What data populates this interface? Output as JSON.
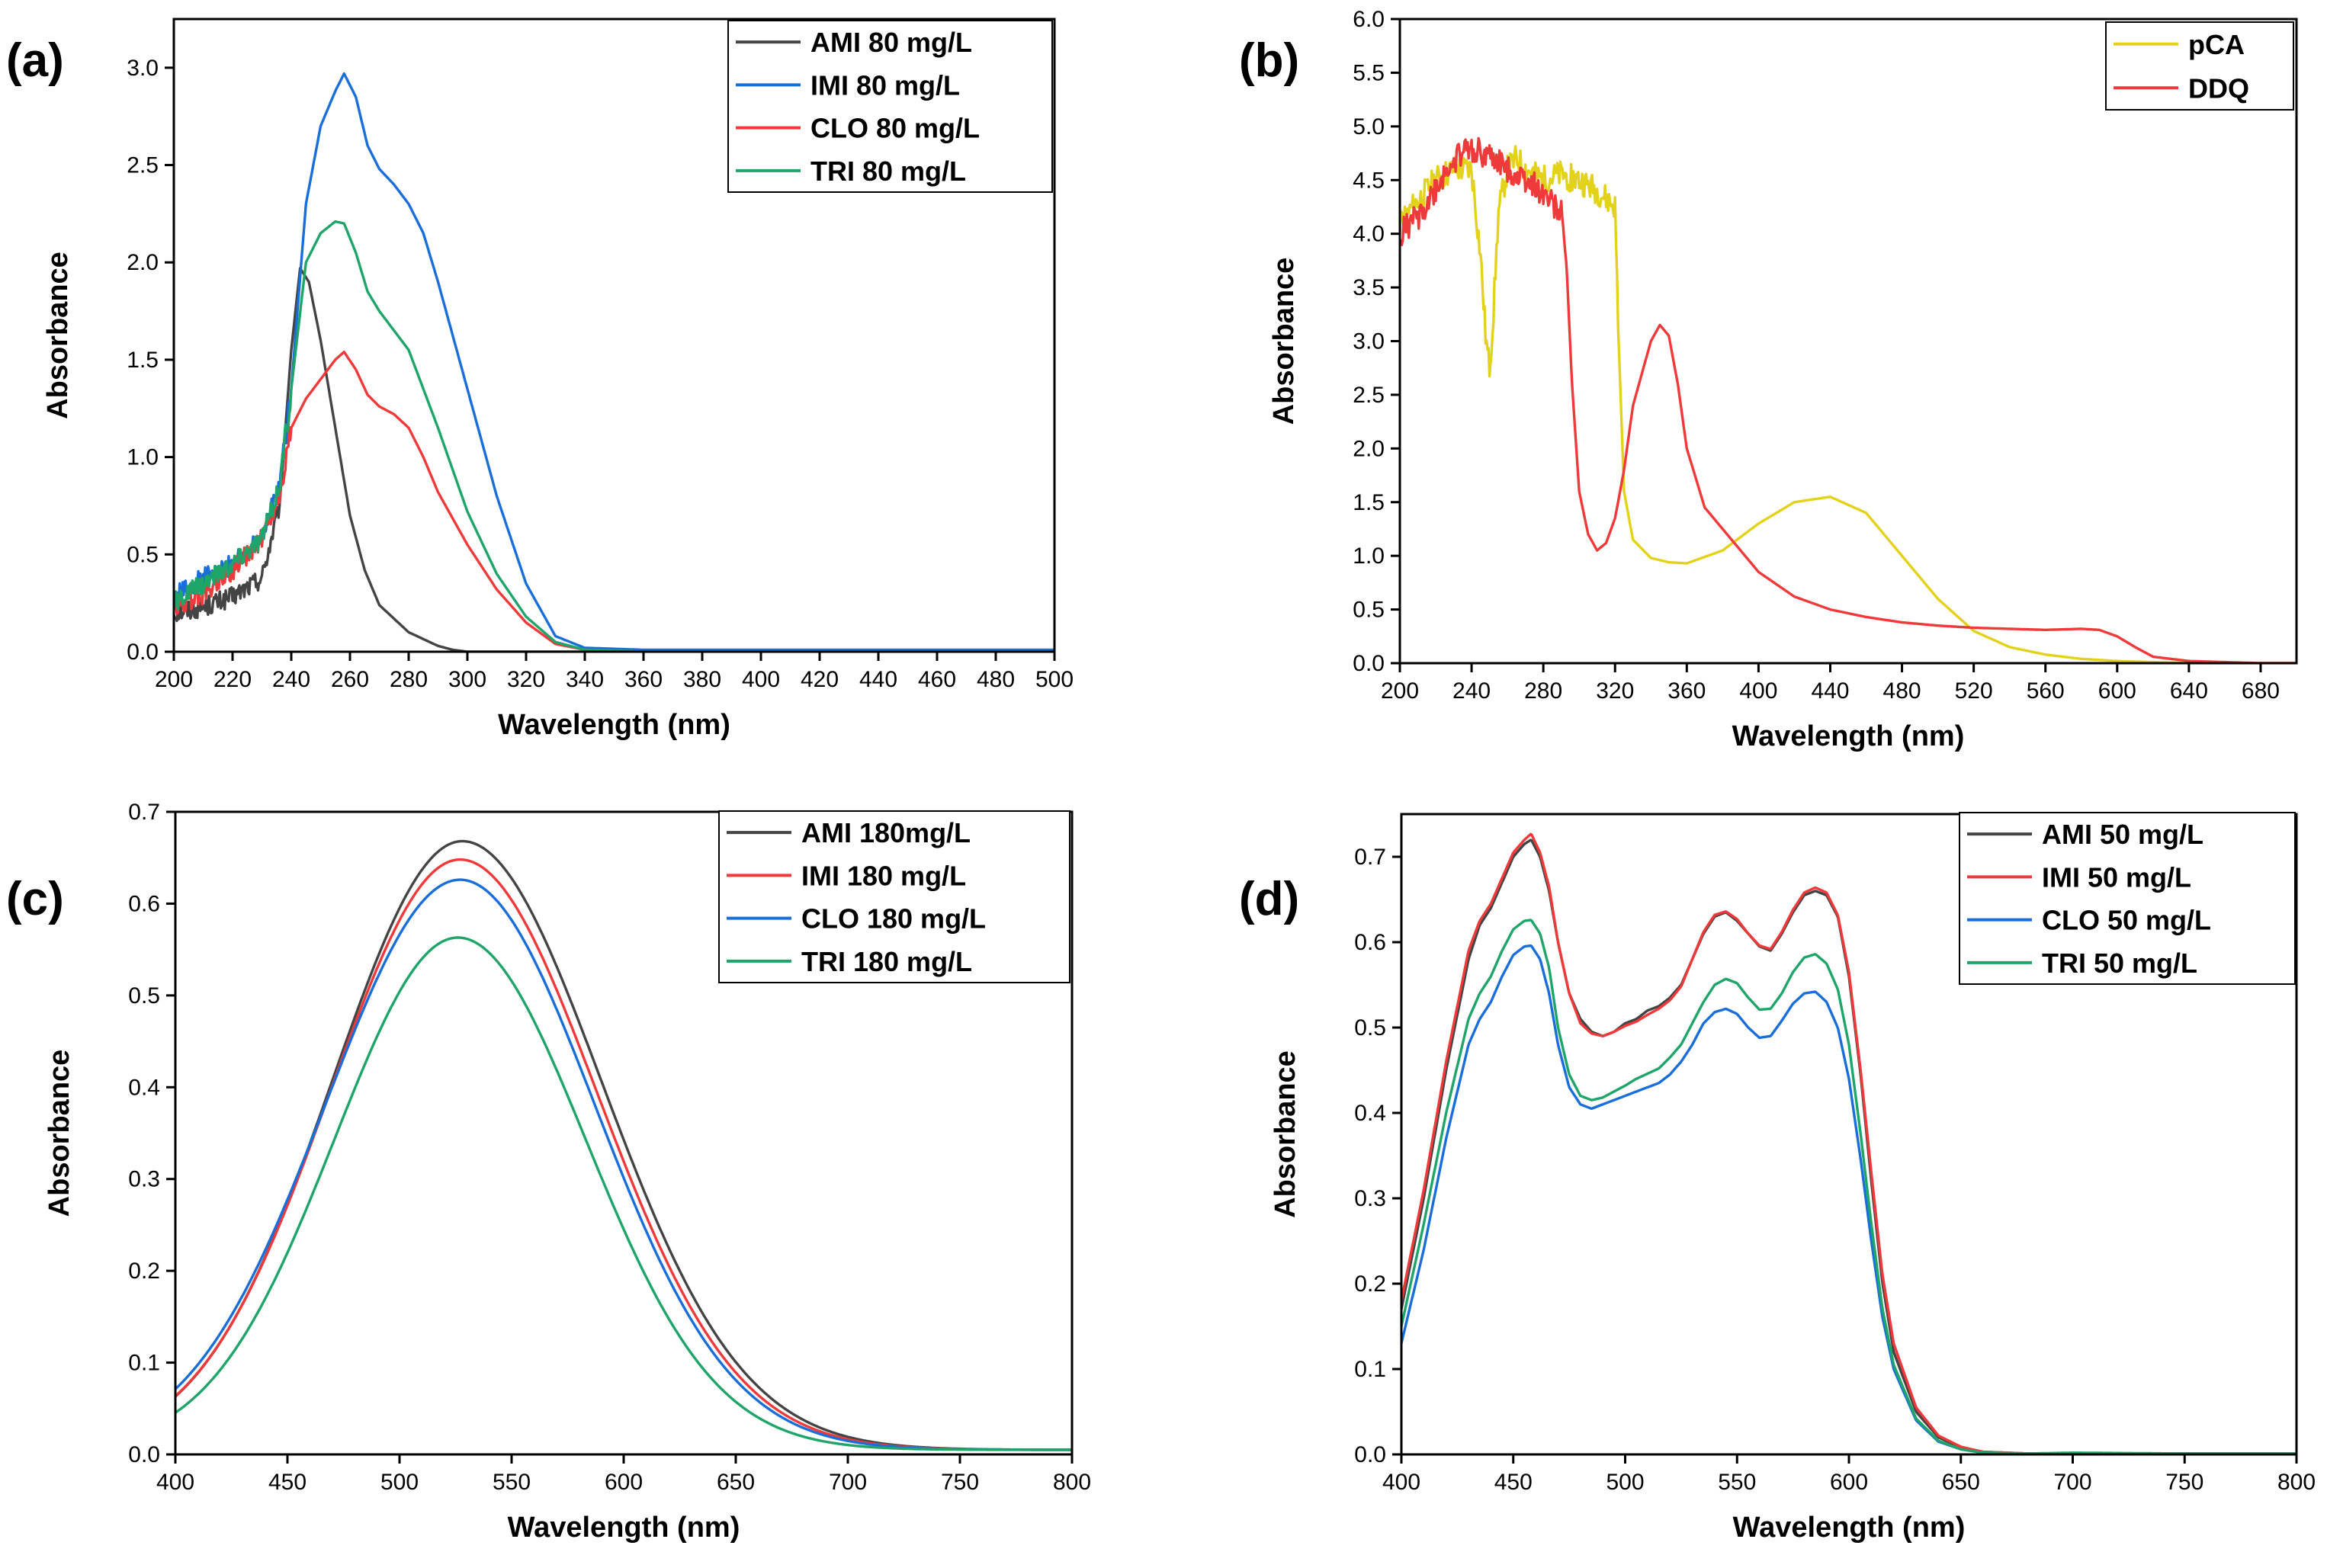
{
  "chart_data": [
    {
      "type": "line",
      "panel_label": "(a)",
      "title": "",
      "xlabel": "Wavelength (nm)",
      "ylabel": "Absorbance",
      "xlim": [
        200,
        500
      ],
      "ylim": [
        0,
        3.25
      ],
      "xticks": [
        200,
        220,
        240,
        260,
        280,
        300,
        320,
        340,
        360,
        380,
        400,
        420,
        440,
        460,
        480,
        500
      ],
      "yticks": [
        0.0,
        0.5,
        1.0,
        1.5,
        2.0,
        2.5,
        3.0
      ],
      "ytick_labels": [
        "0.0",
        "0.5",
        "1.0",
        "1.5",
        "2.0",
        "2.5",
        "3.0"
      ],
      "legend_position": "top-right",
      "series": [
        {
          "name": "AMI 80 mg/L",
          "color": "#444444",
          "noisy_below": 236,
          "x": [
            200,
            210,
            220,
            230,
            236,
            240,
            243,
            246,
            250,
            255,
            260,
            265,
            270,
            280,
            290,
            295,
            300,
            320,
            350,
            400,
            450,
            500
          ],
          "y": [
            0.2,
            0.23,
            0.28,
            0.38,
            0.75,
            1.55,
            1.97,
            1.9,
            1.6,
            1.15,
            0.7,
            0.42,
            0.24,
            0.1,
            0.03,
            0.01,
            0.0,
            0.0,
            0.0,
            0.0,
            0.0,
            0.0
          ]
        },
        {
          "name": "IMI 80 mg/L",
          "color": "#1a6ed8",
          "noisy_below": 240,
          "x": [
            200,
            210,
            220,
            230,
            236,
            240,
            245,
            250,
            255,
            258,
            262,
            266,
            270,
            275,
            280,
            285,
            290,
            300,
            310,
            320,
            330,
            340,
            360,
            400,
            450,
            500
          ],
          "y": [
            0.28,
            0.38,
            0.45,
            0.6,
            0.85,
            1.35,
            2.3,
            2.7,
            2.88,
            2.97,
            2.85,
            2.6,
            2.48,
            2.4,
            2.3,
            2.15,
            1.9,
            1.35,
            0.8,
            0.35,
            0.08,
            0.02,
            0.01,
            0.01,
            0.01,
            0.01
          ]
        },
        {
          "name": "CLO 80 mg/L",
          "color": "#ee3a3a",
          "noisy_below": 240,
          "x": [
            200,
            210,
            220,
            230,
            236,
            240,
            245,
            250,
            255,
            258,
            262,
            266,
            270,
            275,
            280,
            285,
            290,
            300,
            310,
            320,
            330,
            340,
            360,
            400,
            450,
            500
          ],
          "y": [
            0.22,
            0.3,
            0.42,
            0.58,
            0.8,
            1.15,
            1.3,
            1.4,
            1.5,
            1.54,
            1.45,
            1.32,
            1.26,
            1.22,
            1.15,
            1.0,
            0.82,
            0.55,
            0.32,
            0.15,
            0.04,
            0.01,
            0.0,
            0.0,
            0.0,
            0.0
          ]
        },
        {
          "name": "TRI 80 mg/L",
          "color": "#1fa56a",
          "noisy_below": 240,
          "x": [
            200,
            210,
            220,
            230,
            236,
            240,
            245,
            250,
            255,
            258,
            262,
            266,
            270,
            275,
            280,
            285,
            290,
            300,
            310,
            320,
            330,
            340,
            360,
            400,
            450,
            500
          ],
          "y": [
            0.25,
            0.35,
            0.45,
            0.58,
            0.85,
            1.35,
            2.0,
            2.15,
            2.21,
            2.2,
            2.05,
            1.85,
            1.75,
            1.65,
            1.55,
            1.35,
            1.15,
            0.72,
            0.4,
            0.18,
            0.05,
            0.01,
            0.0,
            0.0,
            0.0,
            0.0
          ]
        }
      ]
    },
    {
      "type": "line",
      "panel_label": "(b)",
      "title": "",
      "xlabel": "Wavelength (nm)",
      "ylabel": "Absorbance",
      "xlim": [
        200,
        700
      ],
      "ylim": [
        0,
        6.0
      ],
      "xticks": [
        200,
        240,
        280,
        320,
        360,
        400,
        440,
        480,
        520,
        560,
        600,
        640,
        680
      ],
      "yticks": [
        0.0,
        0.5,
        1.0,
        1.5,
        2.0,
        2.5,
        3.0,
        3.5,
        4.0,
        4.5,
        5.0,
        5.5,
        6.0
      ],
      "ytick_labels": [
        "0.0",
        "0.5",
        "1.0",
        "1.5",
        "2.0",
        "2.5",
        "3.0",
        "3.5",
        "4.0",
        "4.5",
        "5.0",
        "5.5",
        "6.0"
      ],
      "legend_position": "top-right",
      "series": [
        {
          "name": "pCA",
          "color": "#e3d21a",
          "noisy_below": 322,
          "x": [
            200,
            210,
            220,
            230,
            240,
            245,
            248,
            250,
            252,
            255,
            260,
            265,
            270,
            280,
            290,
            300,
            310,
            320,
            322,
            325,
            330,
            340,
            350,
            360,
            380,
            400,
            420,
            440,
            460,
            480,
            500,
            520,
            540,
            560,
            580,
            600,
            620,
            640,
            660,
            700
          ],
          "y": [
            4.1,
            4.3,
            4.5,
            4.6,
            4.6,
            3.8,
            3.0,
            2.75,
            3.2,
            4.2,
            4.6,
            4.7,
            4.6,
            4.5,
            4.55,
            4.5,
            4.4,
            4.25,
            3.0,
            1.6,
            1.15,
            0.98,
            0.94,
            0.93,
            1.05,
            1.3,
            1.5,
            1.55,
            1.4,
            1.0,
            0.6,
            0.3,
            0.15,
            0.08,
            0.04,
            0.02,
            0.01,
            0.0,
            0.0,
            0.0
          ]
        },
        {
          "name": "DDQ",
          "color": "#ee3a3a",
          "noisy_below": 292,
          "x": [
            200,
            210,
            220,
            230,
            240,
            250,
            260,
            270,
            280,
            290,
            293,
            296,
            300,
            305,
            310,
            315,
            320,
            325,
            330,
            340,
            345,
            350,
            355,
            360,
            370,
            380,
            390,
            400,
            420,
            440,
            460,
            480,
            500,
            520,
            540,
            560,
            580,
            590,
            600,
            610,
            620,
            640,
            660,
            680,
            700
          ],
          "y": [
            4.0,
            4.15,
            4.4,
            4.7,
            4.8,
            4.7,
            4.6,
            4.5,
            4.4,
            4.2,
            3.7,
            2.6,
            1.6,
            1.2,
            1.05,
            1.12,
            1.35,
            1.8,
            2.4,
            3.0,
            3.15,
            3.05,
            2.6,
            2.0,
            1.45,
            1.25,
            1.05,
            0.85,
            0.62,
            0.5,
            0.43,
            0.38,
            0.35,
            0.33,
            0.32,
            0.31,
            0.32,
            0.31,
            0.25,
            0.15,
            0.06,
            0.02,
            0.01,
            0.0,
            0.0
          ]
        }
      ]
    },
    {
      "type": "line",
      "panel_label": "(c)",
      "title": "",
      "xlabel": "Wavelength (nm)",
      "ylabel": "Absorbance",
      "xlim": [
        400,
        800
      ],
      "ylim": [
        0,
        0.7
      ],
      "xticks": [
        400,
        450,
        500,
        550,
        600,
        650,
        700,
        750,
        800
      ],
      "yticks": [
        0.0,
        0.1,
        0.2,
        0.3,
        0.4,
        0.5,
        0.6,
        0.7
      ],
      "ytick_labels": [
        "0.0",
        "0.1",
        "0.2",
        "0.3",
        "0.4",
        "0.5",
        "0.6",
        "0.7"
      ],
      "legend_position": "top-right",
      "series": [
        {
          "name": "AMI 180mg/L",
          "color": "#444444",
          "peak": 0.668,
          "center": 528,
          "sigma_left": 58,
          "sigma_right": 62,
          "baseline": 0.005
        },
        {
          "name": "IMI 180 mg/L",
          "color": "#ee3a3a",
          "peak": 0.648,
          "center": 527,
          "sigma_left": 58,
          "sigma_right": 61,
          "baseline": 0.005
        },
        {
          "name": "CLO 180 mg/L",
          "color": "#1a6ed8",
          "peak": 0.626,
          "center": 527,
          "sigma_left": 60,
          "sigma_right": 60,
          "baseline": 0.005
        },
        {
          "name": "TRI 180 mg/L",
          "color": "#1fa56a",
          "peak": 0.563,
          "center": 526,
          "sigma_left": 55,
          "sigma_right": 57,
          "baseline": 0.005
        }
      ]
    },
    {
      "type": "line",
      "panel_label": "(d)",
      "title": "",
      "xlabel": "Wavelength (nm)",
      "ylabel": "Absorbance",
      "xlim": [
        400,
        800
      ],
      "ylim": [
        0,
        0.75
      ],
      "xticks": [
        400,
        450,
        500,
        550,
        600,
        650,
        700,
        750,
        800
      ],
      "yticks": [
        0.0,
        0.1,
        0.2,
        0.3,
        0.4,
        0.5,
        0.6,
        0.7
      ],
      "ytick_labels": [
        "0.0",
        "0.1",
        "0.2",
        "0.3",
        "0.4",
        "0.5",
        "0.6",
        "0.7"
      ],
      "legend_position": "top-right",
      "series": [
        {
          "name": "AMI 50 mg/L",
          "color": "#444444",
          "x": [
            400,
            410,
            420,
            430,
            435,
            440,
            445,
            450,
            455,
            458,
            462,
            466,
            470,
            475,
            480,
            485,
            490,
            495,
            500,
            505,
            510,
            515,
            520,
            525,
            530,
            535,
            540,
            545,
            550,
            555,
            560,
            565,
            570,
            575,
            580,
            585,
            590,
            595,
            600,
            605,
            610,
            615,
            620,
            630,
            640,
            650,
            660,
            680,
            700,
            750,
            800
          ],
          "y": [
            0.17,
            0.3,
            0.45,
            0.58,
            0.62,
            0.64,
            0.67,
            0.7,
            0.715,
            0.72,
            0.7,
            0.66,
            0.6,
            0.54,
            0.51,
            0.495,
            0.49,
            0.495,
            0.505,
            0.51,
            0.52,
            0.525,
            0.535,
            0.55,
            0.58,
            0.61,
            0.63,
            0.635,
            0.625,
            0.61,
            0.595,
            0.59,
            0.61,
            0.635,
            0.655,
            0.66,
            0.655,
            0.63,
            0.56,
            0.45,
            0.32,
            0.2,
            0.12,
            0.05,
            0.02,
            0.008,
            0.003,
            0.001,
            0.001,
            0.001,
            0.001
          ]
        },
        {
          "name": "IMI 50 mg/L",
          "color": "#ee3a3a",
          "x": [
            400,
            410,
            420,
            430,
            435,
            440,
            445,
            450,
            455,
            458,
            462,
            466,
            470,
            475,
            480,
            485,
            490,
            495,
            500,
            505,
            510,
            515,
            520,
            525,
            530,
            535,
            540,
            545,
            550,
            555,
            560,
            565,
            570,
            575,
            580,
            585,
            590,
            595,
            600,
            605,
            610,
            615,
            620,
            630,
            640,
            650,
            660,
            680,
            700,
            750,
            800
          ],
          "y": [
            0.18,
            0.31,
            0.46,
            0.59,
            0.625,
            0.645,
            0.675,
            0.705,
            0.72,
            0.727,
            0.705,
            0.665,
            0.6,
            0.54,
            0.505,
            0.493,
            0.49,
            0.495,
            0.502,
            0.507,
            0.515,
            0.522,
            0.532,
            0.548,
            0.58,
            0.612,
            0.632,
            0.636,
            0.627,
            0.61,
            0.596,
            0.592,
            0.612,
            0.638,
            0.658,
            0.664,
            0.658,
            0.632,
            0.565,
            0.455,
            0.33,
            0.21,
            0.13,
            0.055,
            0.022,
            0.009,
            0.003,
            0.001,
            0.001,
            0.001,
            0.001
          ]
        },
        {
          "name": "CLO 50 mg/L",
          "color": "#1a6ed8",
          "x": [
            400,
            410,
            420,
            430,
            435,
            440,
            445,
            450,
            455,
            458,
            462,
            466,
            470,
            475,
            480,
            485,
            490,
            495,
            500,
            505,
            510,
            515,
            520,
            525,
            530,
            535,
            540,
            545,
            550,
            555,
            560,
            565,
            570,
            575,
            580,
            585,
            590,
            595,
            600,
            605,
            610,
            615,
            620,
            630,
            640,
            650,
            660,
            680,
            700,
            750,
            800
          ],
          "y": [
            0.13,
            0.24,
            0.37,
            0.48,
            0.51,
            0.53,
            0.56,
            0.585,
            0.595,
            0.596,
            0.58,
            0.54,
            0.48,
            0.43,
            0.41,
            0.405,
            0.41,
            0.415,
            0.42,
            0.425,
            0.43,
            0.435,
            0.445,
            0.46,
            0.48,
            0.505,
            0.518,
            0.522,
            0.516,
            0.5,
            0.488,
            0.49,
            0.508,
            0.528,
            0.54,
            0.542,
            0.53,
            0.5,
            0.44,
            0.35,
            0.25,
            0.16,
            0.1,
            0.04,
            0.015,
            0.006,
            0.002,
            0.001,
            0.001,
            0.001,
            0.001
          ]
        },
        {
          "name": "TRI 50 mg/L",
          "color": "#1fa56a",
          "x": [
            400,
            410,
            420,
            430,
            435,
            440,
            445,
            450,
            455,
            458,
            462,
            466,
            470,
            475,
            480,
            485,
            490,
            495,
            500,
            505,
            510,
            515,
            520,
            525,
            530,
            535,
            540,
            545,
            550,
            555,
            560,
            565,
            570,
            575,
            580,
            585,
            590,
            595,
            600,
            605,
            610,
            615,
            620,
            630,
            640,
            650,
            660,
            680,
            700,
            750,
            800
          ],
          "y": [
            0.15,
            0.27,
            0.4,
            0.51,
            0.54,
            0.56,
            0.59,
            0.615,
            0.625,
            0.626,
            0.61,
            0.57,
            0.5,
            0.445,
            0.42,
            0.415,
            0.418,
            0.425,
            0.432,
            0.44,
            0.446,
            0.452,
            0.465,
            0.48,
            0.505,
            0.53,
            0.55,
            0.557,
            0.552,
            0.535,
            0.521,
            0.522,
            0.54,
            0.565,
            0.582,
            0.586,
            0.575,
            0.545,
            0.48,
            0.38,
            0.27,
            0.17,
            0.105,
            0.042,
            0.016,
            0.006,
            0.002,
            0.001,
            0.002,
            0.001,
            0.001
          ]
        }
      ]
    }
  ]
}
